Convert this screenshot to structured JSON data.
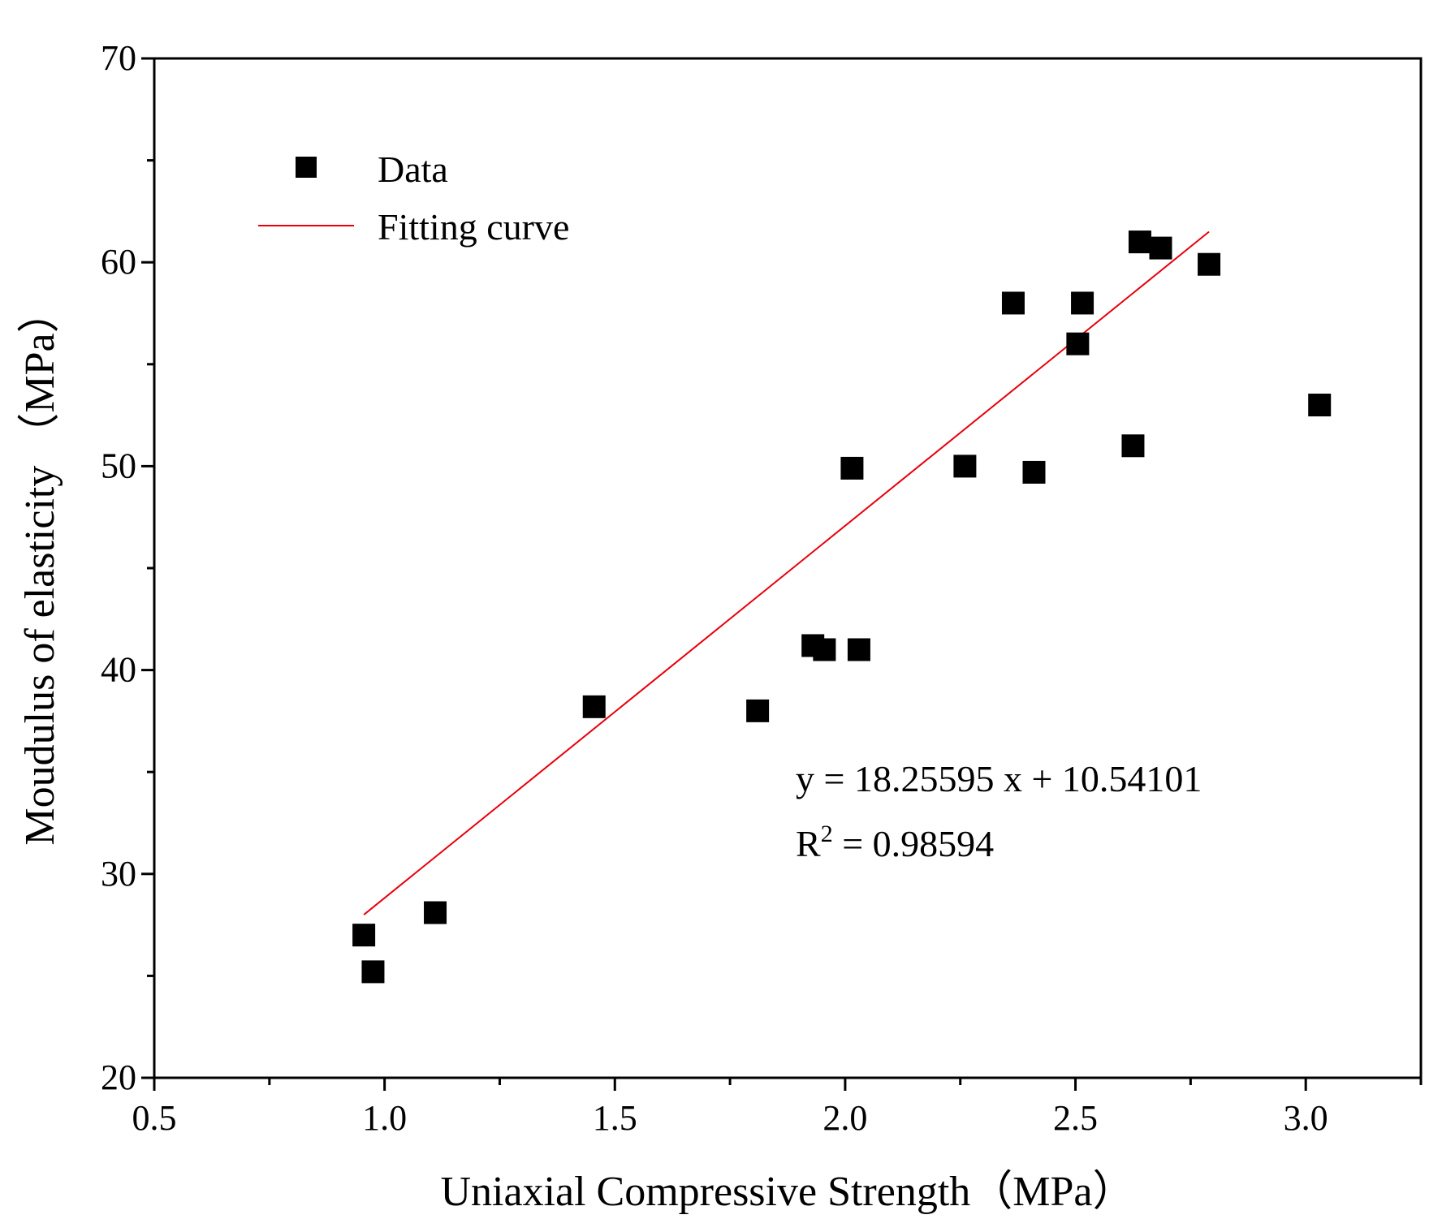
{
  "chart_data": {
    "type": "scatter",
    "xlabel": "Uniaxial Compressive Strength（MPa）",
    "ylabel": "Moudulus of elasticity （MPa）",
    "xlim": [
      0.5,
      3.25
    ],
    "ylim": [
      20,
      70
    ],
    "x_ticks": [
      0.5,
      1.0,
      1.5,
      2.0,
      2.5,
      3.0
    ],
    "x_tick_labels": [
      "0.5",
      "1.0",
      "1.5",
      "2.0",
      "2.5",
      "3.0"
    ],
    "y_ticks": [
      20,
      30,
      40,
      50,
      60,
      70
    ],
    "y_tick_labels": [
      "20",
      "30",
      "40",
      "50",
      "60",
      "70"
    ],
    "x_minor_step": 0.25,
    "y_minor_step": 5,
    "grid": false,
    "legend_position": "top-left",
    "colors": {
      "data": "#000000",
      "fit": "#e8000b"
    },
    "series": [
      {
        "name": "Data",
        "kind": "scatter",
        "marker": "square",
        "points": [
          {
            "x": 0.955,
            "y": 27.0
          },
          {
            "x": 0.975,
            "y": 25.2
          },
          {
            "x": 1.11,
            "y": 28.1
          },
          {
            "x": 1.455,
            "y": 38.2
          },
          {
            "x": 1.81,
            "y": 38.0
          },
          {
            "x": 1.93,
            "y": 41.2
          },
          {
            "x": 1.955,
            "y": 41.0
          },
          {
            "x": 2.015,
            "y": 49.9
          },
          {
            "x": 2.03,
            "y": 41.0
          },
          {
            "x": 2.26,
            "y": 50.0
          },
          {
            "x": 2.365,
            "y": 58.0
          },
          {
            "x": 2.41,
            "y": 49.7
          },
          {
            "x": 2.505,
            "y": 56.0
          },
          {
            "x": 2.515,
            "y": 58.0
          },
          {
            "x": 2.625,
            "y": 51.0
          },
          {
            "x": 2.64,
            "y": 61.0
          },
          {
            "x": 2.685,
            "y": 60.7
          },
          {
            "x": 2.79,
            "y": 59.9
          },
          {
            "x": 3.03,
            "y": 53.0
          }
        ]
      },
      {
        "name": "Fitting curve",
        "kind": "line",
        "x": [
          0.955,
          2.79
        ],
        "y": [
          28.0,
          61.5
        ]
      }
    ],
    "annotations": {
      "equation": "y = 18.25595 x + 10.54101",
      "r2_prefix": "R",
      "r2_sup": "2",
      "r2_value": " = 0.98594"
    }
  }
}
